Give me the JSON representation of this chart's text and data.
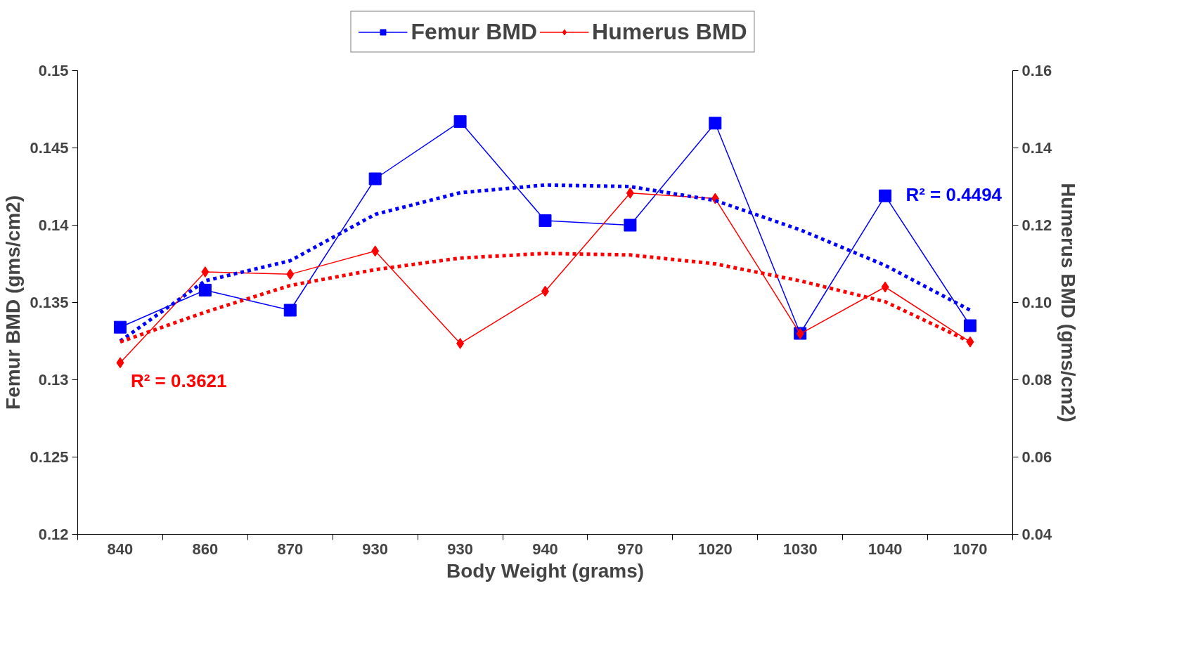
{
  "chart_data": {
    "type": "line",
    "xlabel": "Body Weight (grams)",
    "ylabel": "Femur BMD (gms/cm2)",
    "y2label": "Humerus BMD (gms/cm2)",
    "categories": [
      "840",
      "860",
      "870",
      "930",
      "930",
      "940",
      "970",
      "1020",
      "1030",
      "1040",
      "1070"
    ],
    "series": [
      {
        "name": "Femur BMD",
        "color": "#0000ff",
        "marker": "square",
        "line_style": "solid",
        "values": [
          0.1334,
          0.1358,
          0.1345,
          0.143,
          0.1467,
          0.1403,
          0.14,
          0.1466,
          0.133,
          0.1419,
          0.1335
        ]
      },
      {
        "name": "Humerus BMD",
        "color": "#ff0000",
        "marker": "diamond",
        "line_style": "solid",
        "axis": "y2",
        "values": [
          0.0844,
          0.1079,
          0.1073,
          0.1133,
          0.0894,
          0.1029,
          0.1283,
          0.1269,
          0.0919,
          0.104,
          0.0898
        ]
      },
      {
        "color": "#0000ff",
        "marker": "none",
        "line_style": "dotted",
        "values": [
          0.1325,
          0.1364,
          0.1377,
          0.1407,
          0.1421,
          0.1426,
          0.1425,
          0.1416,
          0.1397,
          0.1374,
          0.1345
        ]
      },
      {
        "color": "#ff0000",
        "marker": "none",
        "line_style": "dotted",
        "axis": "y2",
        "values": [
          0.0898,
          0.0975,
          0.1044,
          0.1085,
          0.1115,
          0.1127,
          0.1123,
          0.11,
          0.1056,
          0.1002,
          0.0898
        ]
      }
    ],
    "annotations": [
      "R² = 0.4494",
      "R² = 0.3621"
    ],
    "ylim": [
      0.12,
      0.15
    ],
    "yticks": [
      0.12,
      0.125,
      0.13,
      0.135,
      0.14,
      0.145,
      0.15
    ],
    "y2lim": [
      0.04,
      0.16
    ],
    "y2ticks": [
      {
        "value": 0.04,
        "label": "0.04"
      },
      {
        "value": 0.06,
        "label": "0.06"
      },
      {
        "value": 0.08,
        "label": "0.08"
      },
      {
        "value": 0.1,
        "label": "0.10"
      },
      {
        "value": 0.12,
        "label": "0.12"
      },
      {
        "value": 0.14,
        "label": "0.14"
      },
      {
        "value": 0.16,
        "label": "0.16"
      }
    ],
    "grid": false,
    "legend": "top"
  }
}
